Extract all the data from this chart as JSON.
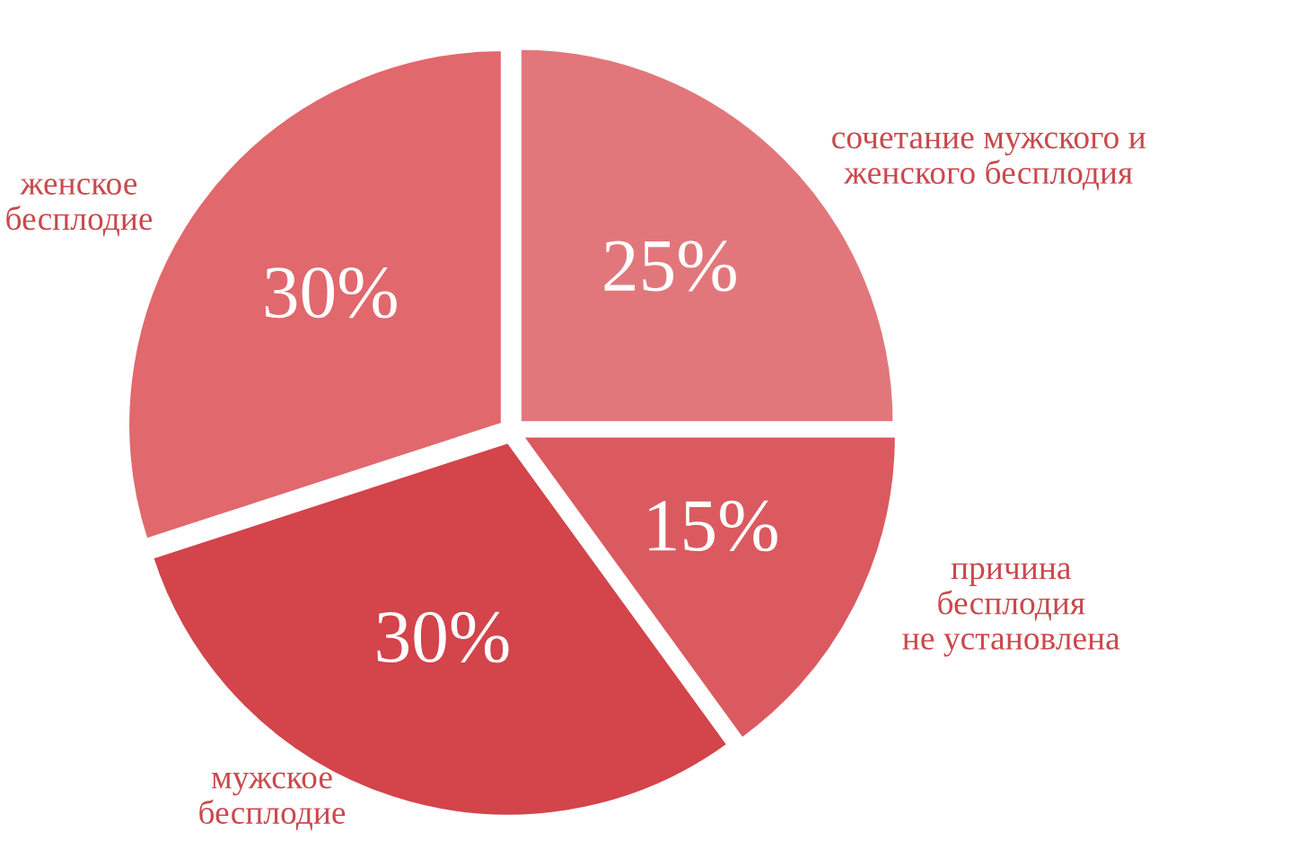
{
  "chart_data": {
    "type": "pie",
    "categories": [
      "сочетание мужского и\nженского бесплодия",
      "причина\nбесплодия\nне установлена",
      "мужское\nбесплодие",
      "женское\nбесплодие"
    ],
    "values": [
      25,
      15,
      30,
      30
    ],
    "value_labels": [
      "25%",
      "15%",
      "30%",
      "30%"
    ],
    "colors": [
      "#e2777b",
      "#db5a60",
      "#d3444b",
      "#e1686d"
    ],
    "legend": false
  }
}
